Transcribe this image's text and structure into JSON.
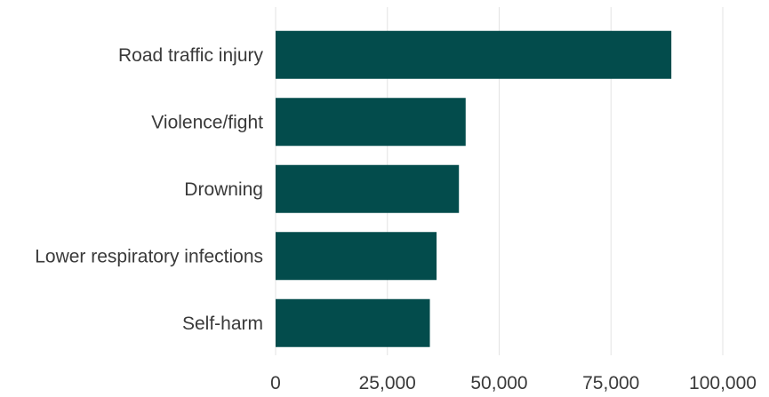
{
  "chart_data": {
    "type": "bar",
    "orientation": "horizontal",
    "categories": [
      "Road traffic injury",
      "Violence/fight",
      "Drowning",
      "Lower respiratory infections",
      "Self-harm"
    ],
    "values": [
      88500,
      42500,
      41000,
      36000,
      34500
    ],
    "xlim": [
      0,
      100000
    ],
    "xticks": [
      0,
      25000,
      50000,
      75000,
      100000
    ],
    "xtick_labels": [
      "0",
      "25,000",
      "50,000",
      "75,000",
      "100,000"
    ],
    "grid": "vertical",
    "bar_color": "#034C4C",
    "grid_color": "#e3e3e3"
  }
}
